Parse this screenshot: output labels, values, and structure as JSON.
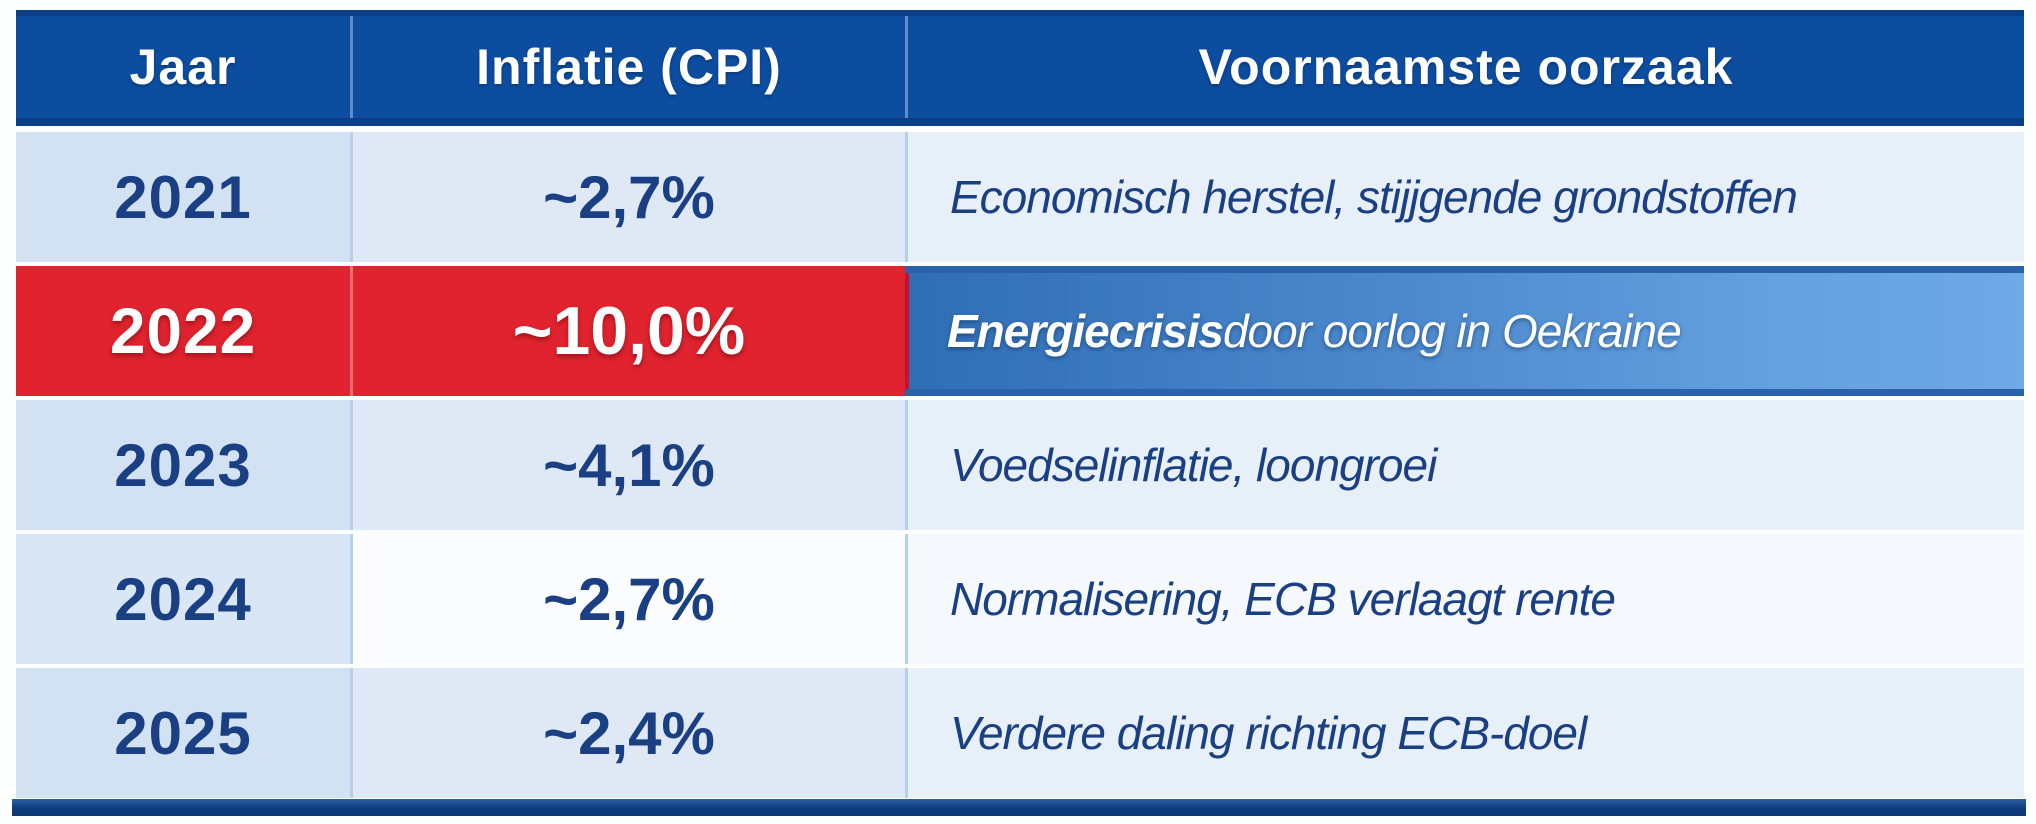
{
  "table": {
    "headers": [
      "Jaar",
      "Inflatie (CPI)",
      "Voornaamste oorzaak"
    ],
    "rows": [
      {
        "year": "2021",
        "cpi": "~2,7%",
        "cause_bold": "",
        "cause": "Economisch herstel, stijjgende grondstoffen",
        "tone": "light",
        "highlight": false
      },
      {
        "year": "2022",
        "cpi": "~10,0%",
        "cause_bold": "Energiecrisis",
        "cause": " door oorlog in Oekraine",
        "tone": "light",
        "highlight": true
      },
      {
        "year": "2023",
        "cpi": "~4,1%",
        "cause_bold": "",
        "cause": "Voedselinflatie, loongroei",
        "tone": "light",
        "highlight": false
      },
      {
        "year": "2024",
        "cpi": "~2,7%",
        "cause_bold": "",
        "cause": "Normalisering, ECB verlaagt rente",
        "tone": "white",
        "highlight": false
      },
      {
        "year": "2025",
        "cpi": "~2,4%",
        "cause_bold": "",
        "cause": "Verdere daling richting ECB-doel",
        "tone": "light",
        "highlight": false
      }
    ]
  },
  "colors": {
    "header_blue": "#0c4da0",
    "header_border": "#0a3e86",
    "highlight_red": "#e0232e",
    "highlight_gradient_left": "#2f6db5",
    "highlight_gradient_right": "#6fa9e6",
    "row_light_year": "#d2e2f3",
    "row_light_cpi": "#dfe9f6",
    "row_light_cause": "#e7eff9",
    "row_white": "#fbfcfe",
    "text_navy": "#1a3f83",
    "bottom_bar": "#0d3c7d"
  },
  "chart_data": {
    "type": "table",
    "title": "",
    "columns": [
      "Jaar",
      "Inflatie (CPI)",
      "Voornaamste oorzaak"
    ],
    "rows": [
      [
        "2021",
        "~2,7%",
        "Economisch herstel, stijjgende grondstoffen"
      ],
      [
        "2022",
        "~10,0%",
        "Energiecrisis door oorlog in Oekraine"
      ],
      [
        "2023",
        "~4,1%",
        "Voedselinflatie, loongroei"
      ],
      [
        "2024",
        "~2,7%",
        "Normalisering, ECB verlaagt rente"
      ],
      [
        "2025",
        "~2,4%",
        "Verdere daling richting ECB-doel"
      ]
    ],
    "inflation_pct_numeric": [
      2.7,
      10.0,
      4.1,
      2.7,
      2.4
    ],
    "highlighted_row": "2022",
    "legend_position": "none",
    "grid": false
  }
}
